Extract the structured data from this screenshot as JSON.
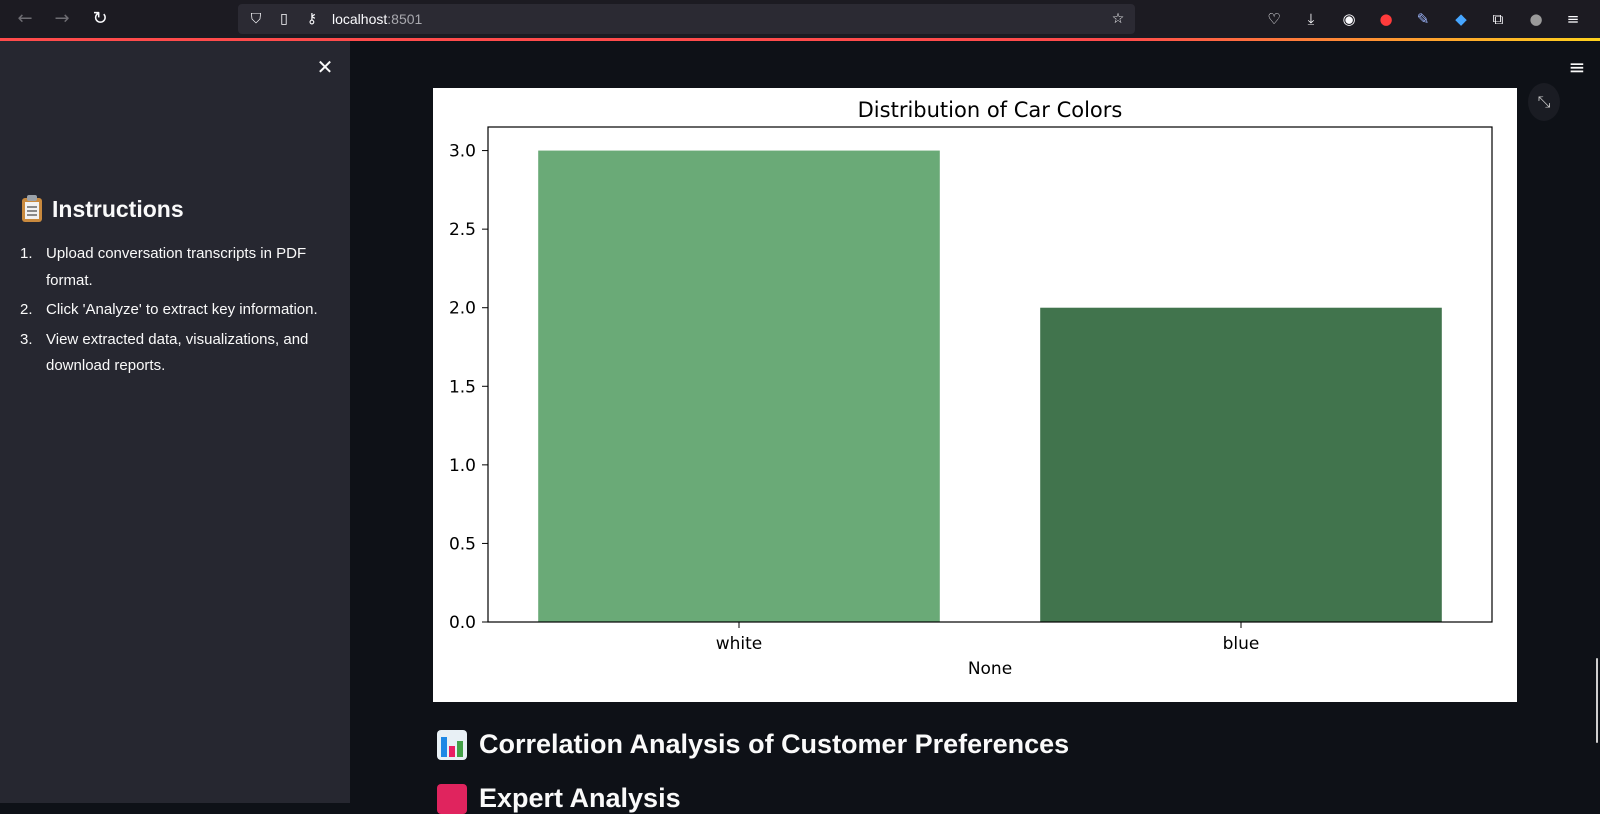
{
  "browser": {
    "url_host": "localhost",
    "url_port": ":8501"
  },
  "sidebar": {
    "heading": "Instructions",
    "heading_icon": "clipboard-icon",
    "steps": [
      {
        "num": "1.",
        "text": "Upload conversation transcripts in PDF format."
      },
      {
        "num": "2.",
        "text": "Click 'Analyze' to extract key information."
      },
      {
        "num": "3.",
        "text": "View extracted data, visualizations, and download reports."
      }
    ]
  },
  "main": {
    "section_heading": "Correlation Analysis of Customer Preferences",
    "section_heading_icon": "bar-chart-icon",
    "next_heading_partial": "Expert Analysis"
  },
  "chart_data": {
    "type": "bar",
    "title": "Distribution of Car Colors",
    "xlabel": "None",
    "ylabel": "",
    "categories": [
      "white",
      "blue"
    ],
    "values": [
      3.0,
      2.0
    ],
    "colors": [
      "#6aaa77",
      "#41744d"
    ],
    "ylim": [
      0,
      3.15
    ],
    "yticks": [
      0.0,
      0.5,
      1.0,
      1.5,
      2.0,
      2.5,
      3.0
    ],
    "ytick_labels": [
      "0.0",
      "0.5",
      "1.0",
      "1.5",
      "2.0",
      "2.5",
      "3.0"
    ],
    "grid": false
  }
}
